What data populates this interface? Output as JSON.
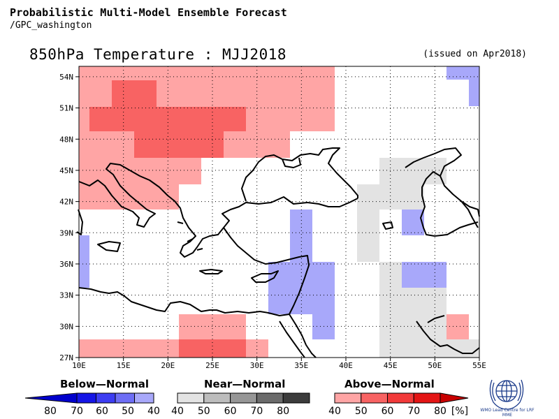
{
  "header": {
    "title": "Probabilistic Multi-Model Ensemble Forecast",
    "subtitle": "/GPC_washington"
  },
  "map": {
    "title": "850hPa Temperature : MJJ2018",
    "issued": "(issued on Apr2018)",
    "lat_ticks": [
      "54N",
      "51N",
      "48N",
      "45N",
      "42N",
      "39N",
      "36N",
      "33N",
      "30N",
      "27N"
    ],
    "lon_ticks": [
      "10E",
      "15E",
      "20E",
      "25E",
      "30E",
      "35E",
      "40E",
      "45E",
      "50E",
      "55E"
    ],
    "extent": {
      "lon": [
        10,
        55
      ],
      "lat": [
        27,
        55
      ]
    }
  },
  "legend": {
    "below": {
      "title": "Below—Normal",
      "labels": [
        "80",
        "70",
        "60",
        "50",
        "40"
      ],
      "colors": [
        "#0000cc",
        "#1515e6",
        "#3d3df2",
        "#6e6ef5",
        "#a8a8fa"
      ]
    },
    "near": {
      "title": "Near—Normal",
      "labels": [
        "40",
        "50",
        "60",
        "70",
        "80"
      ],
      "colors": [
        "#e3e3e3",
        "#bdbdbd",
        "#969696",
        "#6b6b6b",
        "#3c3c3c"
      ]
    },
    "above": {
      "title": "Above—Normal",
      "labels": [
        "40",
        "50",
        "60",
        "70",
        "80"
      ],
      "unit": "[%]",
      "colors": [
        "#ffa5a5",
        "#f86363",
        "#f23a3a",
        "#e41515",
        "#c80000"
      ]
    }
  },
  "logo": {
    "text": "WMO Lead Centre for LRF MME",
    "color": "#1a3a8a"
  }
}
